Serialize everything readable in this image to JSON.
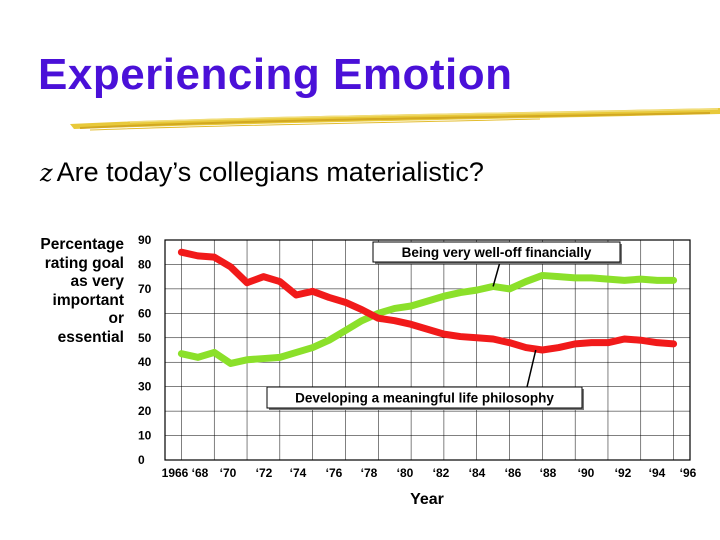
{
  "slide": {
    "title": "Experiencing Emotion",
    "bullet_glyph": "z",
    "bullet_text": "Are today’s collegians materialistic?",
    "side_label_lines": [
      "Percentage",
      "rating goal",
      "as very",
      "important",
      "or",
      "essential"
    ],
    "colors": {
      "title": "#4a10d8",
      "brush": "#e8c93a"
    }
  },
  "chart_data": {
    "type": "line",
    "title": "",
    "xlabel": "Year",
    "ylabel": "Percentage rating goal as very important or essential",
    "x_tick_labels": [
      "1966 ‘68",
      "‘70",
      "‘72",
      "‘74",
      "‘76",
      "‘78",
      "‘80",
      "‘82",
      "‘84",
      "‘86",
      "‘88",
      "‘90",
      "‘92",
      "‘94",
      "‘96"
    ],
    "x": [
      1966,
      1967,
      1968,
      1969,
      1970,
      1971,
      1972,
      1973,
      1974,
      1975,
      1976,
      1977,
      1978,
      1979,
      1980,
      1981,
      1982,
      1983,
      1984,
      1985,
      1986,
      1987,
      1988,
      1989,
      1990,
      1991,
      1992,
      1993,
      1994,
      1995,
      1996
    ],
    "xlim": [
      1965,
      1997
    ],
    "ylim": [
      0,
      90
    ],
    "y_ticks": [
      0,
      10,
      20,
      30,
      40,
      50,
      60,
      70,
      80,
      90
    ],
    "grid": true,
    "series": [
      {
        "name": "Being very well-off financially",
        "color": "#8be02a",
        "values": [
          43.5,
          42,
          44,
          39.5,
          41,
          41.5,
          42,
          44,
          46,
          49,
          53,
          57,
          60,
          62,
          63,
          65,
          67,
          68.5,
          69.5,
          71,
          70,
          73,
          75.5,
          75,
          74.5,
          74.5,
          74,
          73.5,
          74,
          73.5,
          73.5
        ]
      },
      {
        "name": "Developing a meaningful life philosophy",
        "color": "#f11a1a",
        "values": [
          85,
          83.5,
          83,
          79,
          72.5,
          75,
          73,
          67.5,
          69,
          66.5,
          64.5,
          61.5,
          58,
          57,
          55.5,
          53.5,
          51.5,
          50.5,
          50,
          49.5,
          48,
          46,
          45,
          46,
          47.5,
          48,
          48,
          49.5,
          49,
          48,
          47.5
        ]
      }
    ]
  }
}
